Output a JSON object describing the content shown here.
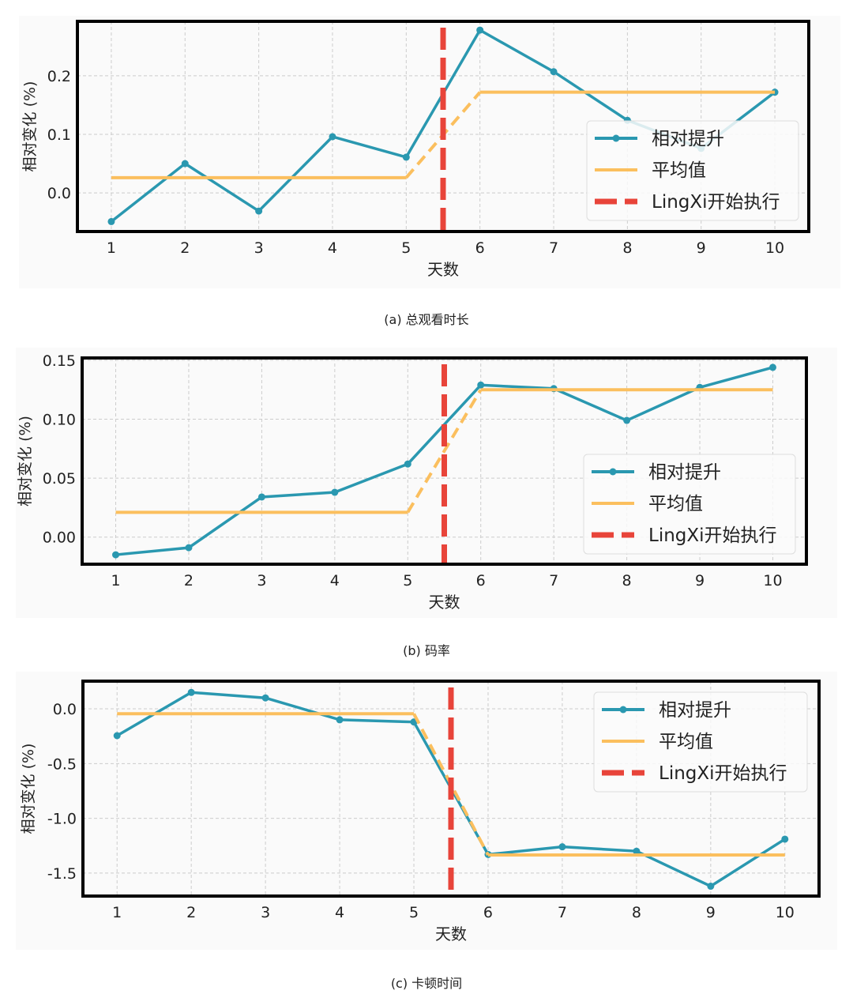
{
  "chart_data": [
    {
      "type": "line",
      "caption": "(a) 总观看时长",
      "xlabel": "天数",
      "ylabel": "相对变化 (%)",
      "x": [
        1,
        2,
        3,
        4,
        5,
        6,
        7,
        8,
        9,
        10
      ],
      "xticks": [
        "1",
        "2",
        "3",
        "4",
        "5",
        "6",
        "7",
        "8",
        "9",
        "10"
      ],
      "yticks": [
        0.0,
        0.1,
        0.2
      ],
      "ytick_labels": [
        "0.0",
        "0.1",
        "0.2"
      ],
      "xlim": [
        0.54,
        10.46
      ],
      "ylim": [
        -0.066,
        0.293
      ],
      "grid": true,
      "legend": "right",
      "series": [
        {
          "name": "相对提升",
          "color": "#2a98b0",
          "values": [
            -0.049,
            0.05,
            -0.031,
            0.096,
            0.061,
            0.278,
            0.207,
            0.124,
            0.076,
            0.172
          ]
        },
        {
          "name": "平均值",
          "color": "#fbbf5e",
          "x": [
            1,
            5,
            6,
            10
          ],
          "values": [
            0.026,
            0.026,
            0.172,
            0.172
          ]
        }
      ],
      "vline": {
        "name": "LingXi开始执行",
        "x": 5.5,
        "color": "#e8443a"
      }
    },
    {
      "type": "line",
      "caption": "(b) 码率",
      "xlabel": "天数",
      "ylabel": "相对变化 (%)",
      "x": [
        1,
        2,
        3,
        4,
        5,
        6,
        7,
        8,
        9,
        10
      ],
      "xticks": [
        "1",
        "2",
        "3",
        "4",
        "5",
        "6",
        "7",
        "8",
        "9",
        "10"
      ],
      "yticks": [
        0.0,
        0.05,
        0.1,
        0.15
      ],
      "ytick_labels": [
        "0.00",
        "0.05",
        "0.10",
        "0.15"
      ],
      "xlim": [
        0.54,
        10.46
      ],
      "ylim": [
        -0.023,
        0.152
      ],
      "grid": true,
      "legend": "right",
      "series": [
        {
          "name": "相对提升",
          "color": "#2a98b0",
          "values": [
            -0.015,
            -0.009,
            0.034,
            0.038,
            0.062,
            0.129,
            0.126,
            0.099,
            0.127,
            0.144
          ]
        },
        {
          "name": "平均值",
          "color": "#fbbf5e",
          "x": [
            1,
            5,
            6,
            10
          ],
          "values": [
            0.021,
            0.021,
            0.125,
            0.125
          ]
        }
      ],
      "vline": {
        "name": "LingXi开始执行",
        "x": 5.5,
        "color": "#e8443a"
      }
    },
    {
      "type": "line",
      "caption": "(c) 卡顿时间",
      "xlabel": "天数",
      "ylabel": "相对变化 (%)",
      "x": [
        1,
        2,
        3,
        4,
        5,
        6,
        7,
        8,
        9,
        10
      ],
      "xticks": [
        "1",
        "2",
        "3",
        "4",
        "5",
        "6",
        "7",
        "8",
        "9",
        "10"
      ],
      "yticks": [
        0.0,
        -0.5,
        -1.0,
        -1.5
      ],
      "ytick_labels": [
        "0.0",
        "-0.5",
        "-1.0",
        "-1.5"
      ],
      "xlim": [
        0.54,
        10.46
      ],
      "ylim": [
        -1.71,
        0.253
      ],
      "grid": true,
      "legend": "top-right",
      "series": [
        {
          "name": "相对提升",
          "color": "#2a98b0",
          "values": [
            -0.245,
            0.15,
            0.1,
            -0.1,
            -0.12,
            -1.33,
            -1.26,
            -1.3,
            -1.62,
            -1.19
          ]
        },
        {
          "name": "平均值",
          "color": "#fbbf5e",
          "x": [
            1,
            5,
            6,
            10
          ],
          "values": [
            -0.045,
            -0.045,
            -1.335,
            -1.335
          ]
        }
      ],
      "vline": {
        "name": "LingXi开始执行",
        "x": 5.5,
        "color": "#e8443a"
      }
    }
  ]
}
